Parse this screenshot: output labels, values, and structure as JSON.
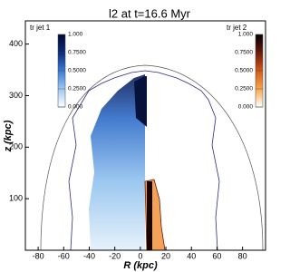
{
  "chart_data": {
    "type": "image",
    "title": "l2 at t=16.6 Myr",
    "xlabel": "R  (kpc)",
    "ylabel": "z  (kpc)",
    "xlim": [
      -90,
      98
    ],
    "ylim": [
      0,
      445
    ],
    "xticks": [
      -80,
      -60,
      -40,
      -20,
      0,
      20,
      40,
      60,
      80
    ],
    "yticks": [
      100,
      200,
      300,
      400
    ],
    "colorbars": [
      {
        "label": "tr jet 1",
        "lim": [
          0,
          1
        ],
        "colors": [
          "#ffffff",
          "#9ec8f0",
          "#3a7bd5",
          "#0c2a7a",
          "#000a30"
        ],
        "ticks": [
          {
            "value": 1,
            "label": "1.000"
          },
          {
            "value": 0.75,
            "label": "0.7500"
          },
          {
            "value": 0.5,
            "label": "0.5000"
          },
          {
            "value": 0.25,
            "label": "0.2500"
          },
          {
            "value": 0,
            "label": "0.000"
          }
        ]
      },
      {
        "label": "tr jet 2",
        "lim": [
          0,
          1
        ],
        "colors": [
          "#ffffff",
          "#f7a64a",
          "#d2581a",
          "#6a1a08",
          "#000000"
        ],
        "ticks": [
          {
            "value": 1,
            "label": "1.000"
          },
          {
            "value": 0.75,
            "label": "0.7500"
          },
          {
            "value": 0.5,
            "label": "0.5000"
          },
          {
            "value": 0.25,
            "label": "0.2500"
          },
          {
            "value": 0,
            "label": "0.000"
          }
        ]
      }
    ]
  }
}
